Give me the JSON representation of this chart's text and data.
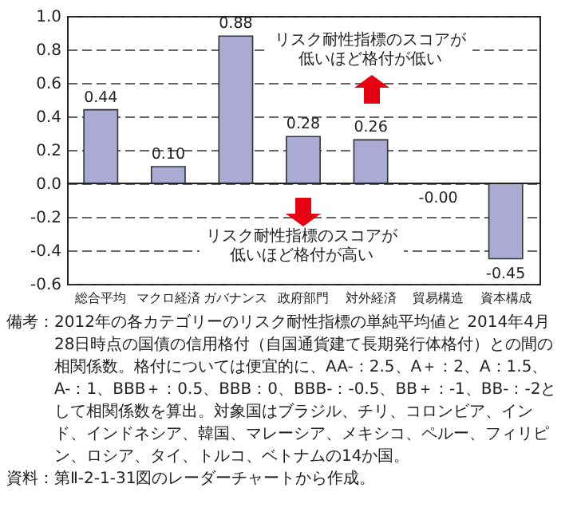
{
  "chart_data": {
    "type": "bar",
    "categories": [
      "総合平均",
      "マクロ経済",
      "ガバナンス",
      "政府部門",
      "対外経済",
      "貿易構造",
      "資本構成"
    ],
    "values": [
      0.44,
      0.1,
      0.88,
      0.28,
      0.26,
      0,
      -0.45
    ],
    "value_labels": [
      "0.44",
      "0.10",
      "0.88",
      "0.28",
      "0.26",
      "-0.00",
      "-0.45"
    ],
    "color": "#aaaad2",
    "ylim": [
      -0.6,
      1.0
    ],
    "yticks": [
      {
        "value": -0.6,
        "label": "-0.6"
      },
      {
        "value": -0.4,
        "label": "-0.4"
      },
      {
        "value": -0.2,
        "label": "-0.2"
      },
      {
        "value": 0,
        "label": "0.0"
      },
      {
        "value": 0.2,
        "label": "0.2"
      },
      {
        "value": 0.4,
        "label": "0.4"
      },
      {
        "value": 0.6,
        "label": "0.6"
      },
      {
        "value": 0.8,
        "label": "0.8"
      },
      {
        "value": 1.0,
        "label": "1.0"
      }
    ],
    "grid": "y",
    "annotations": [
      "リスク耐性指標のスコアが低いほど格付が低い",
      "リスク耐性指標のスコアが低いほど格付が高い",
      "備考：2012年の各カテゴリーのリスク耐性指標の単純平均値と 2014年4月28日時点の国債の信用格付（自国通貨建て長期発行体格付）との間の相関係数。格付については便宜的に、AA-：2.5、A＋：2、A：1.5、A-：1、BBB＋：0.5、BBB：0、BBB-：-0.5、BB＋：-1、BB-：-2として相関係数を算出。対象国はブラジル、チリ、コロンビア、インド、インドネシア、韓国、マレーシア、メキシコ、ペルー、フィリピン、ロシア、タイ、トルコ、ベトナムの14か国。",
      "資料：第Ⅱ-2-1-31図のレーダーチャートから作成。"
    ]
  }
}
